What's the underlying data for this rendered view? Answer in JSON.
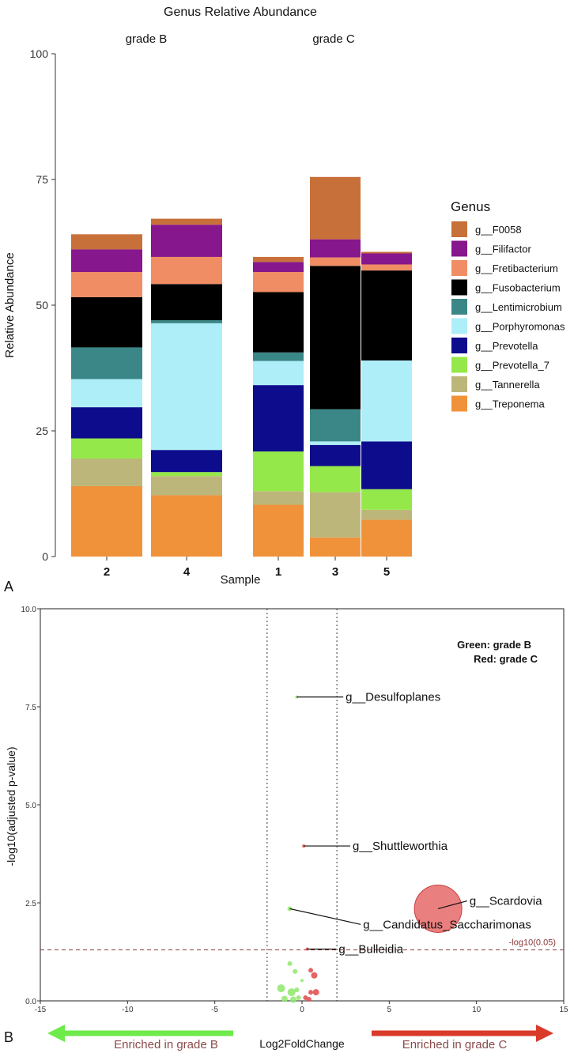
{
  "chart_data": [
    {
      "type": "bar",
      "stacked": true,
      "title": "Genus Relative Abundance",
      "panel_label": "A",
      "xlabel": "Sample",
      "ylabel": "Relative Abundance",
      "ylim": [
        0,
        100
      ],
      "yticks": [
        0,
        25,
        50,
        75,
        100
      ],
      "legend_title": "Genus",
      "legend_position": "right",
      "facets": [
        {
          "label": "grade B",
          "samples": [
            "2",
            "4"
          ]
        },
        {
          "label": "grade C",
          "samples": [
            "1",
            "3",
            "5"
          ]
        }
      ],
      "genera": [
        {
          "name": "g__Treponema",
          "color": "#F0923A"
        },
        {
          "name": "g__Tannerella",
          "color": "#BDB67A"
        },
        {
          "name": "g__Prevotella_7",
          "color": "#95E84A"
        },
        {
          "name": "g__Prevotella",
          "color": "#0C0C8C"
        },
        {
          "name": "g__Porphyromonas",
          "color": "#AEEEF8"
        },
        {
          "name": "g__Lentimicrobium",
          "color": "#3B8787"
        },
        {
          "name": "g__Fusobacterium",
          "color": "#000000"
        },
        {
          "name": "g__Fretibacterium",
          "color": "#F08D65"
        },
        {
          "name": "g__Filifactor",
          "color": "#86178C"
        },
        {
          "name": "g__F0058",
          "color": "#C8703A"
        }
      ],
      "samples": [
        {
          "sample": "2",
          "values": [
            14.0,
            5.5,
            4.0,
            6.2,
            5.6,
            6.3,
            10.0,
            5.0,
            4.5,
            3.0
          ]
        },
        {
          "sample": "4",
          "values": [
            12.2,
            3.8,
            0.8,
            4.4,
            25.2,
            0.6,
            7.2,
            5.4,
            6.4,
            1.2
          ]
        },
        {
          "sample": "1",
          "values": [
            10.3,
            2.7,
            7.9,
            13.2,
            4.8,
            1.7,
            12.0,
            4.0,
            2.0,
            1.0
          ]
        },
        {
          "sample": "3",
          "values": [
            3.8,
            9.0,
            5.2,
            4.2,
            0.7,
            6.4,
            28.5,
            1.7,
            3.6,
            12.4
          ]
        },
        {
          "sample": "5",
          "values": [
            7.3,
            2.0,
            4.1,
            9.5,
            16.1,
            0.0,
            17.9,
            1.2,
            2.2,
            0.3
          ]
        }
      ]
    },
    {
      "type": "scatter",
      "subtype": "volcano",
      "panel_label": "B",
      "xlabel": "Log2FoldChange",
      "ylabel": "-log10(adjusted p-value)",
      "xlim": [
        -15,
        15
      ],
      "ylim": [
        0,
        10
      ],
      "xticks": [
        -15,
        -10,
        -5,
        0,
        5,
        10,
        15
      ],
      "yticks": [
        0.0,
        2.5,
        5.0,
        7.5,
        10.0
      ],
      "ytick_labels": [
        "0.0",
        "2.5",
        "5.0",
        "7.5",
        "10.0"
      ],
      "fc_threshold_lines": [
        -2,
        2
      ],
      "p_threshold": {
        "value": 1.3,
        "label": "-log10(0.05)"
      },
      "legend_note": [
        "Green: grade B",
        "Red: grade C"
      ],
      "enriched_left": "Enriched in grade B",
      "enriched_right": "Enriched in grade C",
      "colors": {
        "grade_B": "#8EE86A",
        "grade_C": "#E04848",
        "threshold": "#8B3A3A",
        "arrow_left": "#6EEA4A",
        "arrow_right": "#D93A2A"
      },
      "labeled_points": [
        {
          "label": "g__Desulfoplanes",
          "x": -0.3,
          "y": 7.75,
          "group": "grade B",
          "size": 2,
          "label_x": 2.5,
          "label_y": 7.75
        },
        {
          "label": "g__Shuttleworthia",
          "x": 0.1,
          "y": 3.95,
          "group": "grade C",
          "size": 2,
          "label_x": 2.9,
          "label_y": 3.95
        },
        {
          "label": "g__Scardovia",
          "x": 7.8,
          "y": 2.35,
          "group": "grade C",
          "size": 30,
          "label_x": 9.6,
          "label_y": 2.55
        },
        {
          "label": "g__Candidatus_Saccharimonas",
          "x": -0.7,
          "y": 2.35,
          "group": "grade B",
          "size": 3,
          "label_x": 3.5,
          "label_y": 1.95
        },
        {
          "label": "g__Bulleidia",
          "x": 0.3,
          "y": 1.32,
          "group": "grade C",
          "size": 2,
          "label_x": 2.1,
          "label_y": 1.32
        }
      ],
      "points": [
        {
          "x": -0.7,
          "y": 0.95,
          "group": "grade B",
          "size": 3
        },
        {
          "x": -0.4,
          "y": 0.75,
          "group": "grade B",
          "size": 3
        },
        {
          "x": -1.2,
          "y": 0.32,
          "group": "grade B",
          "size": 5
        },
        {
          "x": -0.6,
          "y": 0.22,
          "group": "grade B",
          "size": 5
        },
        {
          "x": -0.3,
          "y": 0.28,
          "group": "grade B",
          "size": 3
        },
        {
          "x": -1.0,
          "y": 0.05,
          "group": "grade B",
          "size": 4
        },
        {
          "x": -0.5,
          "y": 0.03,
          "group": "grade B",
          "size": 4
        },
        {
          "x": -0.2,
          "y": 0.08,
          "group": "grade B",
          "size": 3
        },
        {
          "x": 0.0,
          "y": 0.52,
          "group": "grade B",
          "size": 2
        },
        {
          "x": 0.5,
          "y": 0.78,
          "group": "grade C",
          "size": 3
        },
        {
          "x": 0.7,
          "y": 0.65,
          "group": "grade C",
          "size": 4
        },
        {
          "x": 0.8,
          "y": 0.22,
          "group": "grade C",
          "size": 4
        },
        {
          "x": 0.5,
          "y": 0.22,
          "group": "grade C",
          "size": 3
        },
        {
          "x": 0.2,
          "y": 0.08,
          "group": "grade C",
          "size": 3
        },
        {
          "x": 0.4,
          "y": 0.04,
          "group": "grade C",
          "size": 3
        }
      ]
    }
  ]
}
